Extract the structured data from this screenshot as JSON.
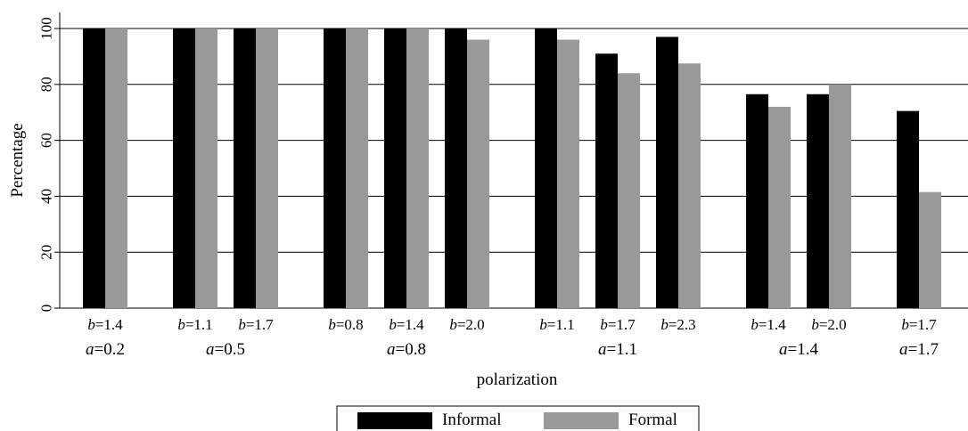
{
  "chart_data": {
    "type": "bar",
    "title": "",
    "xlabel": "polarization",
    "ylabel": "Percentage",
    "ylim": [
      0,
      100
    ],
    "yticks": [
      0,
      20,
      40,
      60,
      80,
      100
    ],
    "grid": true,
    "legend_position": "bottom",
    "groups": [
      {
        "a_label": "a",
        "a_value": "=0.2",
        "categories": [
          {
            "b_label": "b",
            "b_value": "=1.4"
          }
        ]
      },
      {
        "a_label": "a",
        "a_value": "=0.5",
        "categories": [
          {
            "b_label": "b",
            "b_value": "=1.1"
          },
          {
            "b_label": "b",
            "b_value": "=1.7"
          }
        ]
      },
      {
        "a_label": "a",
        "a_value": "=0.8",
        "categories": [
          {
            "b_label": "b",
            "b_value": "=0.8"
          },
          {
            "b_label": "b",
            "b_value": "=1.4"
          },
          {
            "b_label": "b",
            "b_value": "=2.0"
          }
        ]
      },
      {
        "a_label": "a",
        "a_value": "=1.1",
        "categories": [
          {
            "b_label": "b",
            "b_value": "=1.1"
          },
          {
            "b_label": "b",
            "b_value": "=1.7"
          },
          {
            "b_label": "b",
            "b_value": "=2.3"
          }
        ]
      },
      {
        "a_label": "a",
        "a_value": "=1.4",
        "categories": [
          {
            "b_label": "b",
            "b_value": "=1.4"
          },
          {
            "b_label": "b",
            "b_value": "=2.0"
          }
        ]
      },
      {
        "a_label": "a",
        "a_value": "=1.7",
        "categories": [
          {
            "b_label": "b",
            "b_value": "=1.7"
          }
        ]
      }
    ],
    "series": [
      {
        "name": "Informal",
        "color": "#000000",
        "values": [
          100,
          100,
          100,
          100,
          100,
          100,
          100,
          91,
          97,
          76.5,
          76.5,
          70.5
        ]
      },
      {
        "name": "Formal",
        "color": "#999999",
        "values": [
          100,
          100,
          100,
          100,
          100,
          96,
          96,
          84,
          87.5,
          72,
          80,
          41.5
        ]
      }
    ]
  }
}
